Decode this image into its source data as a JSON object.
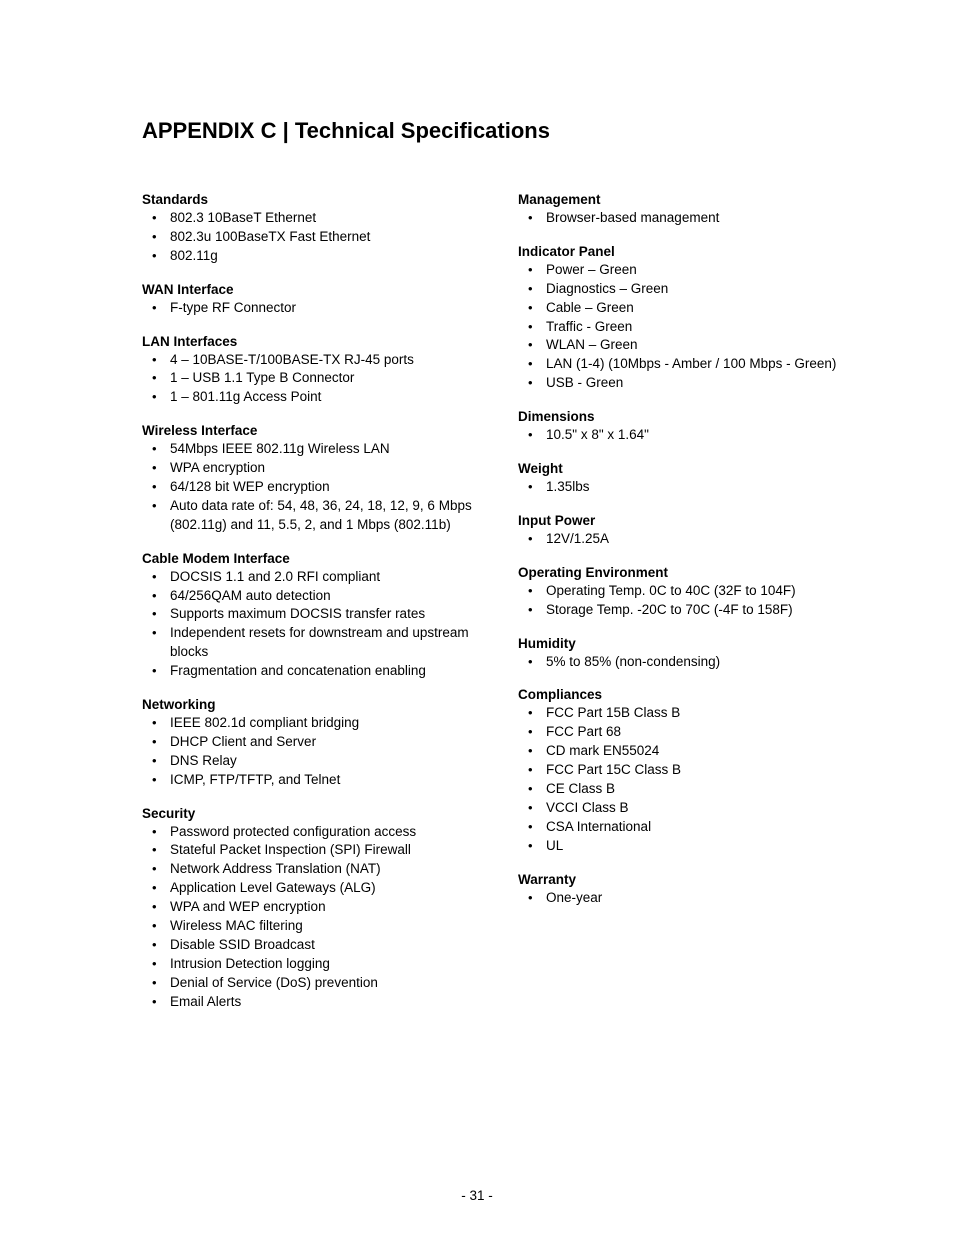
{
  "title": "APPENDIX C | Technical Specifications",
  "pageNumber": "- 31 -",
  "leftColumn": [
    {
      "heading": "Standards",
      "items": [
        "802.3 10BaseT Ethernet",
        "802.3u 100BaseTX Fast Ethernet",
        "802.11g"
      ]
    },
    {
      "heading": "WAN Interface",
      "items": [
        "F-type RF Connector"
      ]
    },
    {
      "heading": "LAN Interfaces",
      "items": [
        "4 – 10BASE-T/100BASE-TX RJ-45 ports",
        "1 – USB 1.1 Type B Connector",
        "1 – 801.11g Access Point"
      ]
    },
    {
      "heading": "Wireless Interface",
      "items": [
        "54Mbps IEEE 802.11g Wireless LAN",
        "WPA encryption",
        "64/128 bit WEP encryption",
        "Auto data rate of: 54, 48, 36, 24, 18, 12, 9, 6 Mbps (802.11g) and 11, 5.5, 2, and 1 Mbps (802.11b)"
      ]
    },
    {
      "heading": "Cable Modem Interface",
      "items": [
        "DOCSIS 1.1 and 2.0 RFI compliant",
        "64/256QAM auto detection",
        "Supports maximum DOCSIS transfer rates",
        "Independent resets for downstream and upstream blocks",
        "Fragmentation and concatenation enabling"
      ]
    },
    {
      "heading": "Networking",
      "items": [
        "IEEE 802.1d compliant bridging",
        "DHCP Client and Server",
        "DNS Relay",
        "ICMP, FTP/TFTP, and Telnet"
      ]
    },
    {
      "heading": "Security",
      "items": [
        "Password protected configuration access",
        "Stateful Packet Inspection (SPI) Firewall",
        "Network Address Translation (NAT)",
        "Application Level Gateways (ALG)",
        "WPA and WEP encryption",
        "Wireless MAC filtering",
        "Disable SSID Broadcast",
        "Intrusion Detection logging",
        "Denial of Service (DoS) prevention",
        "Email Alerts"
      ]
    }
  ],
  "rightColumn": [
    {
      "heading": "Management",
      "items": [
        "Browser-based management"
      ]
    },
    {
      "heading": "Indicator Panel",
      "items": [
        "Power – Green",
        "Diagnostics – Green",
        "Cable – Green",
        "Traffic - Green",
        "WLAN – Green",
        "LAN (1-4)  (10Mbps - Amber / 100 Mbps - Green)",
        "USB - Green"
      ]
    },
    {
      "heading": "Dimensions",
      "items": [
        "10.5\" x 8\" x 1.64\""
      ]
    },
    {
      "heading": "Weight",
      "items": [
        "1.35lbs"
      ]
    },
    {
      "heading": "Input Power",
      "items": [
        "12V/1.25A"
      ]
    },
    {
      "heading": "Operating Environment",
      "items": [
        "Operating Temp. 0C to 40C (32F to 104F)",
        "Storage Temp. -20C to 70C (-4F to 158F)"
      ]
    },
    {
      "heading": "Humidity",
      "items": [
        "5% to 85% (non-condensing)"
      ]
    },
    {
      "heading": "Compliances",
      "items": [
        "FCC Part 15B Class B",
        "FCC Part 68",
        "CD mark EN55024",
        "FCC Part 15C Class B",
        "CE Class B",
        "VCCI Class B",
        "CSA International",
        "UL"
      ]
    },
    {
      "heading": "Warranty",
      "items": [
        "One-year"
      ]
    }
  ]
}
